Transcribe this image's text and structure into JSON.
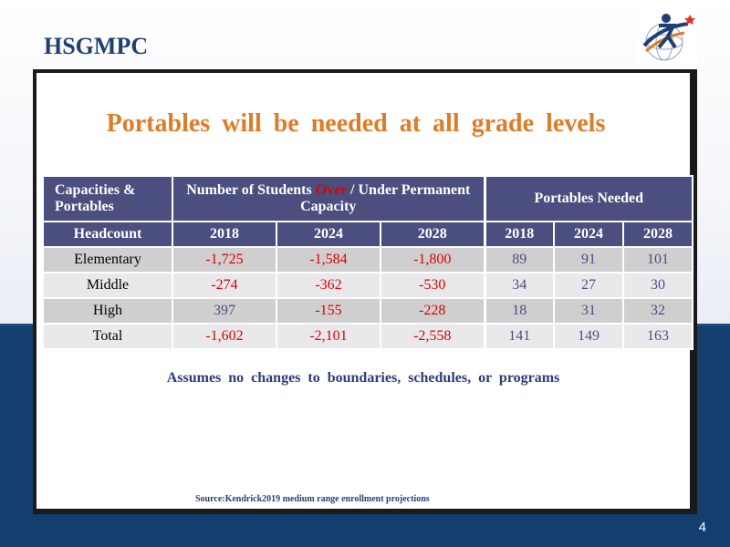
{
  "header": {
    "title": "HSGMPC",
    "logo_icon": "runner-star-logo-icon"
  },
  "slide": {
    "number": "4"
  },
  "heading": "Portables will be needed at all grade levels",
  "table": {
    "corner_line1": "Capacities &",
    "corner_line2": "Portables",
    "students_header_pre": "Number of Students ",
    "students_header_over": "Over",
    "students_header_post": " / Under Permanent Capacity",
    "portables_header": "Portables Needed",
    "headcount_label": "Headcount",
    "years": [
      "2018",
      "2024",
      "2028"
    ],
    "rows": [
      {
        "label": "Elementary",
        "students": [
          "-1,725",
          "-1,584",
          "-1,800"
        ],
        "portables": [
          "89",
          "91",
          "101"
        ]
      },
      {
        "label": "Middle",
        "students": [
          "-274",
          "-362",
          "-530"
        ],
        "portables": [
          "34",
          "27",
          "30"
        ]
      },
      {
        "label": "High",
        "students": [
          "397",
          "-155",
          "-228"
        ],
        "portables": [
          "18",
          "31",
          "32"
        ]
      },
      {
        "label": "Total",
        "students": [
          "-1,602",
          "-2,101",
          "-2,558"
        ],
        "portables": [
          "141",
          "149",
          "163"
        ]
      }
    ]
  },
  "assumption": "Assumes no changes to boundaries, schedules, or programs",
  "source": "Source:Kendrick2019 medium range enrollment projections",
  "colors": {
    "navy": "#143e6e",
    "header_purple": "#4a4f7f",
    "orange": "#e07b26",
    "red": "#e00000"
  }
}
